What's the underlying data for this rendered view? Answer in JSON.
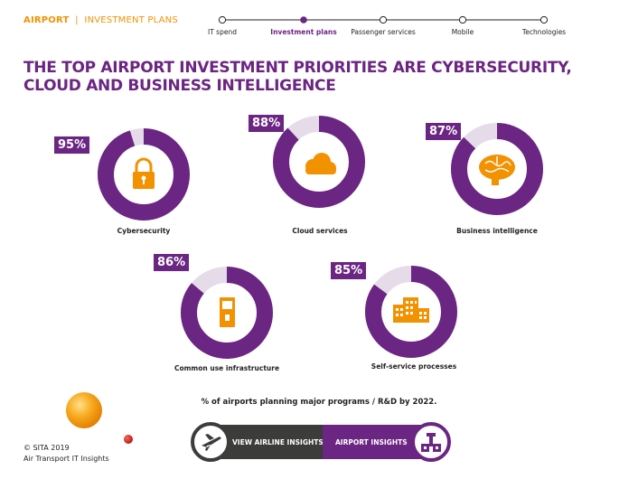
{
  "header": {
    "section": "AIRPORT",
    "separator": "|",
    "subsection": "INVESTMENT PLANS"
  },
  "nav": {
    "steps": [
      {
        "label": "IT spend",
        "active": false
      },
      {
        "label": "Investment plans",
        "active": true
      },
      {
        "label": "Passenger services",
        "active": false
      },
      {
        "label": "Mobile",
        "active": false
      },
      {
        "label": "Technologies",
        "active": false
      }
    ]
  },
  "headline": {
    "line1": "THE TOP AIRPORT INVESTMENT PRIORITIES ARE CYBERSECURITY,",
    "line2": "CLOUD AND BUSINESS INTELLIGENCE"
  },
  "chart_data": {
    "type": "donut",
    "unit": "%",
    "categories": [
      "Cybersecurity",
      "Cloud services",
      "Business intelligence",
      "Common use infrastructure",
      "Self-service processes"
    ],
    "values": [
      95,
      88,
      87,
      86,
      85
    ],
    "labels": [
      "95%",
      "88%",
      "87%",
      "86%",
      "85%"
    ],
    "icons": [
      "lock-icon",
      "cloud-icon",
      "brain-icon",
      "kiosk-icon",
      "building-icon"
    ],
    "caption": "% of airports planning major programs / R&D by 2022."
  },
  "buttons": {
    "airline": "VIEW AIRLINE INSIGHTS",
    "airport": "AIRPORT INSIGHTS"
  },
  "footer": {
    "copyright": "© SITA 2019",
    "report": "Air Transport IT Insights"
  },
  "colors": {
    "purple": "#6b2582",
    "orange": "#f39200",
    "track": "#e6dbe9",
    "dark": "#3c3c3b"
  }
}
